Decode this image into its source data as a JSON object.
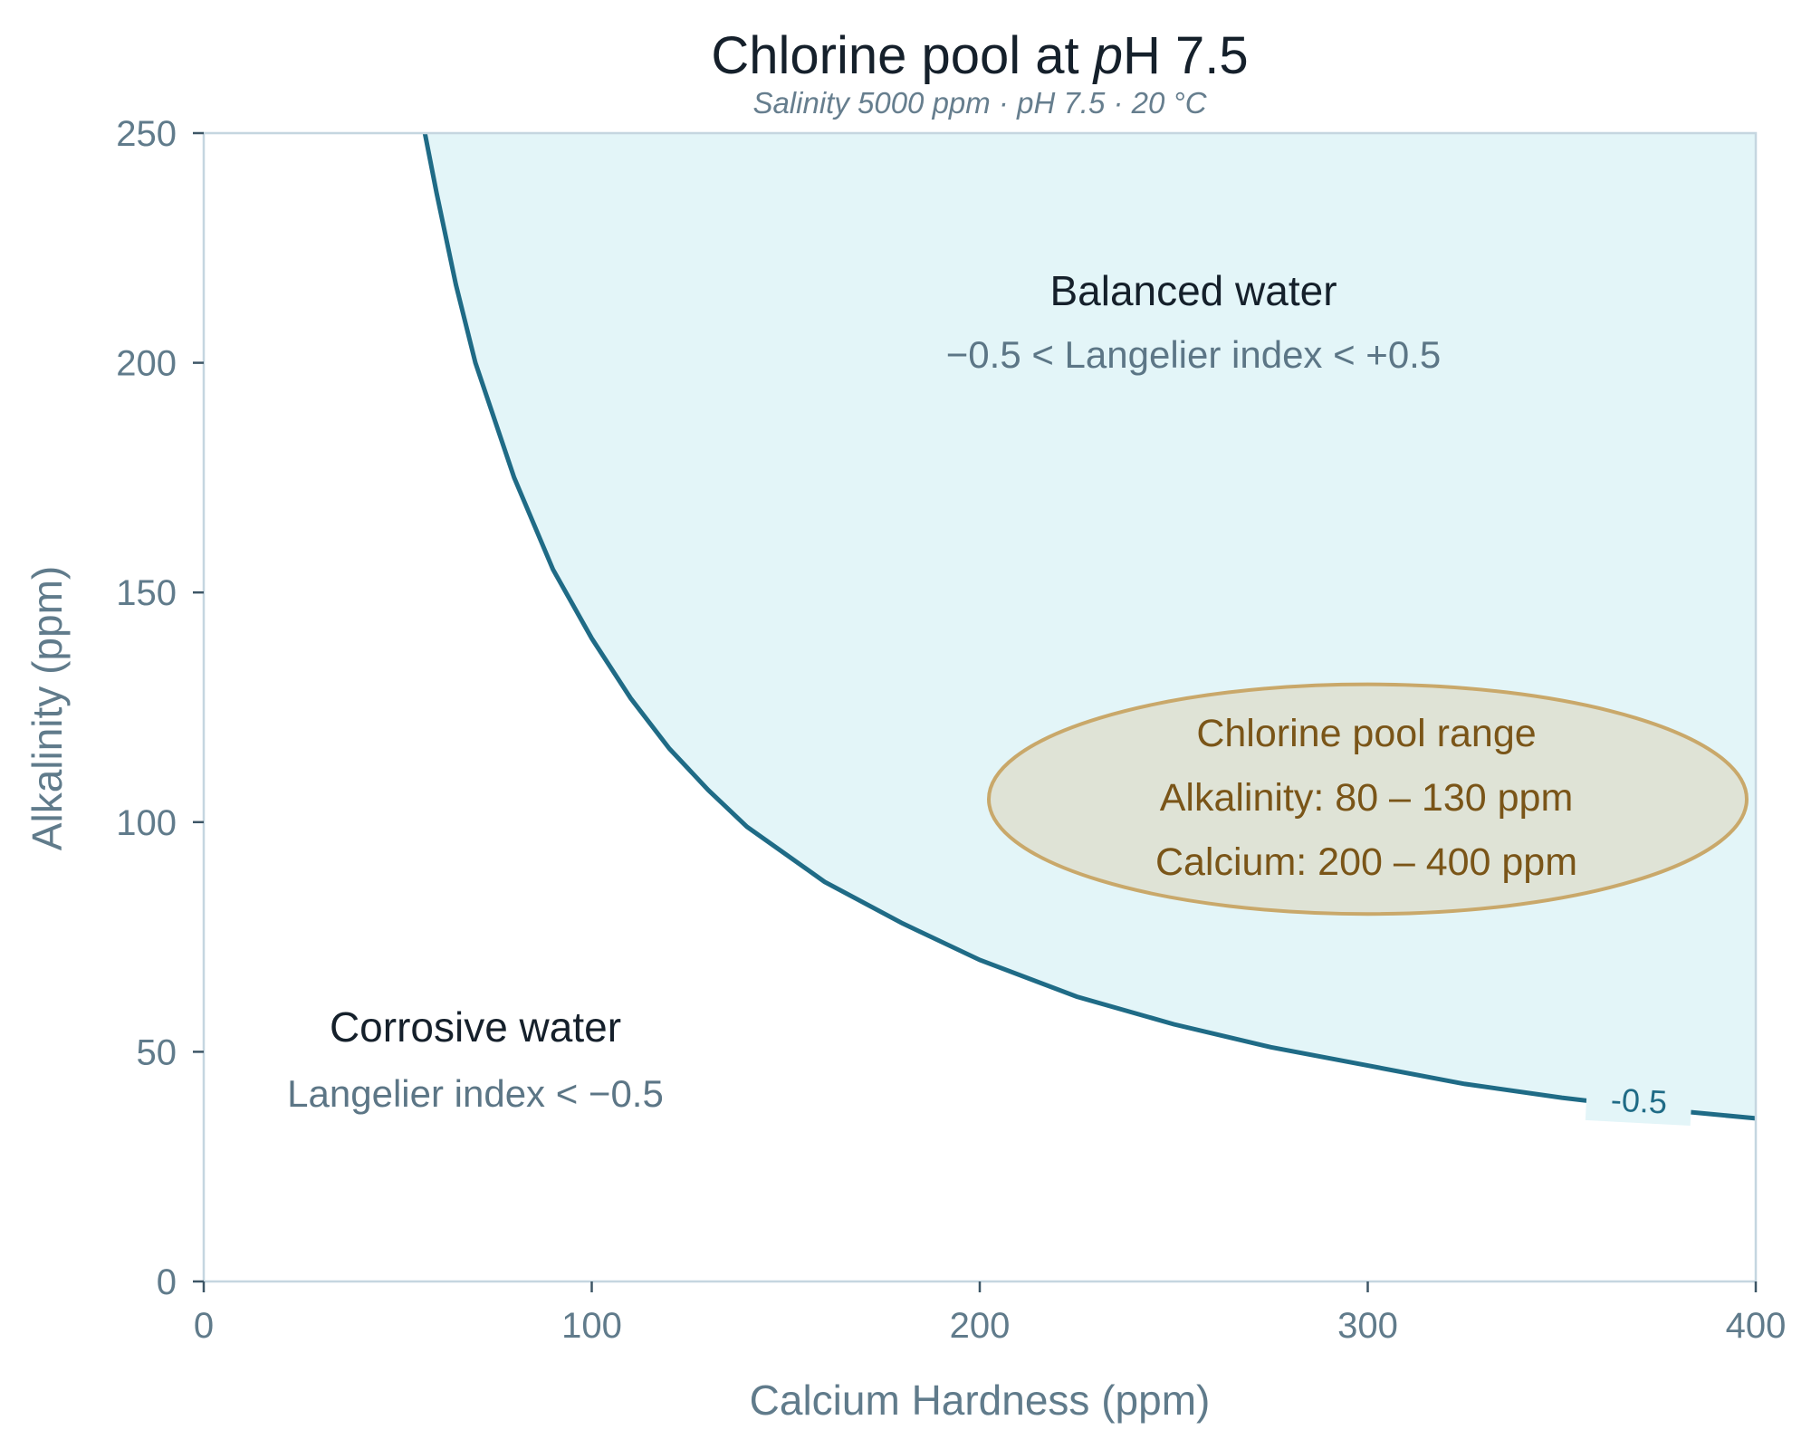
{
  "chart_data": {
    "type": "area",
    "title_main": "Chlorine pool at ",
    "title_italic": "p",
    "title_end": "H 7.5",
    "subtitle": "Salinity 5000 ppm  ·  pH 7.5  ·  20 °C",
    "xlabel": "Calcium Hardness  (ppm)",
    "ylabel": "Alkalinity  (ppm)",
    "xlim": [
      0,
      400
    ],
    "ylim": [
      0,
      250
    ],
    "xticks": [
      "0",
      "100",
      "200",
      "300",
      "400"
    ],
    "yticks": [
      "0",
      "50",
      "100",
      "150",
      "200",
      "250"
    ],
    "grid": false,
    "contour": {
      "label": "-0.5",
      "x": [
        57,
        60,
        65,
        70,
        80,
        90,
        100,
        110,
        120,
        130,
        140,
        150,
        160,
        180,
        200,
        225,
        250,
        275,
        300,
        325,
        350,
        375,
        400
      ],
      "y": [
        250,
        237,
        217,
        200,
        175,
        155,
        140,
        127,
        116,
        107,
        99,
        93,
        87,
        78,
        70,
        62,
        56,
        51,
        47,
        43,
        40,
        37.5,
        35.5
      ]
    },
    "regions": {
      "balanced_title": "Balanced water",
      "balanced_sub": "−0.5 < Langelier index < +0.5",
      "corrosive_title": "Corrosive water",
      "corrosive_sub": "Langelier index < −0.5"
    },
    "target_range": {
      "title": "Chlorine pool range",
      "alkalinity_text": "Alkalinity: 80 – 130 ppm",
      "calcium_text": "Calcium: 200 – 400 ppm",
      "alkalinity": [
        80,
        130
      ],
      "calcium": [
        200,
        400
      ]
    },
    "colors": {
      "contour": "#1f6b86",
      "balanced_fill": "#e3f5f8",
      "ellipse_fill": "#dfe3d6",
      "ellipse_stroke": "#c9a86a",
      "axis": "#c5d6e0"
    }
  }
}
